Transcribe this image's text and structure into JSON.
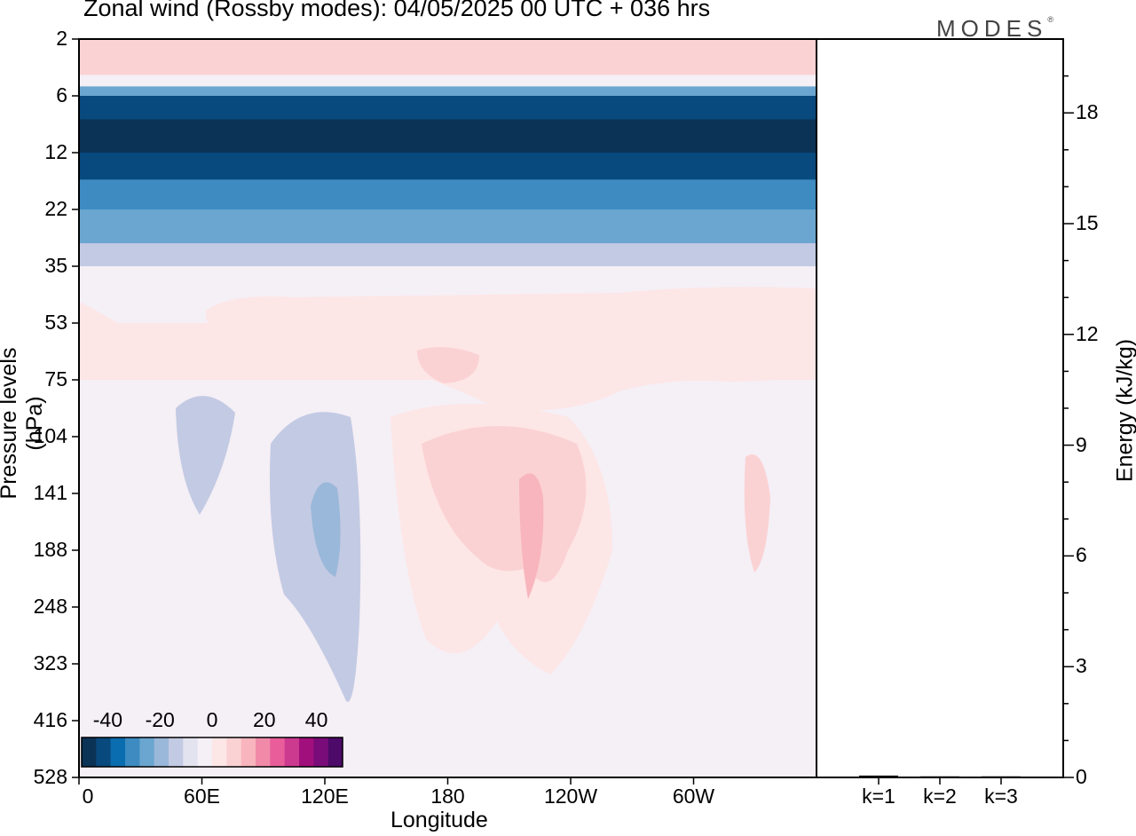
{
  "chart_data": [
    {
      "type": "heatmap",
      "title": "Zonal wind (Rossby modes):  04/05/2025  00 UTC  + 036 hrs",
      "xlabel": "Longitude",
      "ylabel": "Pressure levels (hPa)",
      "x_ticks": [
        "0",
        "60E",
        "120E",
        "180",
        "120W",
        "60W"
      ],
      "y_ticks": [
        "2",
        "6",
        "12",
        "22",
        "35",
        "53",
        "75",
        "104",
        "141",
        "188",
        "248",
        "323",
        "416",
        "528"
      ],
      "y_scale": "log",
      "colorbar": {
        "ticks": [
          "-40",
          "-20",
          "0",
          "20",
          "40"
        ],
        "range": [
          -50,
          50
        ],
        "step": 5
      },
      "level_profile": [
        {
          "level": "2",
          "value": 11
        },
        {
          "level": "4",
          "value": 0
        },
        {
          "level": "5",
          "value": -22
        },
        {
          "level": "6",
          "value": -33
        },
        {
          "level": "8",
          "value": -42
        },
        {
          "level": "12",
          "value": -37
        },
        {
          "level": "16",
          "value": -27
        },
        {
          "level": "22",
          "value": -19
        },
        {
          "level": "29",
          "value": -9
        },
        {
          "level": "35",
          "value": -2
        },
        {
          "level": "53",
          "value": 4
        },
        {
          "level": "75",
          "value": 2
        },
        {
          "level": "104",
          "value": 1
        },
        {
          "level": "141",
          "value": 0
        },
        {
          "level": "188",
          "value": 0
        },
        {
          "level": "248",
          "value": 0
        },
        {
          "level": "323",
          "value": 0
        },
        {
          "level": "416",
          "value": 0
        },
        {
          "level": "528",
          "value": 0
        }
      ]
    },
    {
      "type": "bar",
      "ylabel": "Energy (kJ/kg)",
      "categories": [
        "k=1",
        "k=2",
        "k=3"
      ],
      "values": [
        0.05,
        0.03,
        0.03
      ],
      "y_ticks": [
        "0",
        "3",
        "6",
        "9",
        "12",
        "15",
        "18"
      ],
      "ylim": [
        0,
        20
      ]
    }
  ],
  "brand": "MODES",
  "colors": {
    "negative": [
      "#0b3356",
      "#08497e",
      "#0a6daf",
      "#3d8bc1",
      "#6aa6cf",
      "#9ab8d9",
      "#c3cae3",
      "#e3e3f0"
    ],
    "neutral": "#f5eff6",
    "positive": [
      "#fde6e6",
      "#fbd2d3",
      "#f8b5bd",
      "#f18aa9",
      "#e85d9a",
      "#cc3a8f",
      "#a10f7c",
      "#7a0c7a",
      "#4d0a69"
    ]
  }
}
